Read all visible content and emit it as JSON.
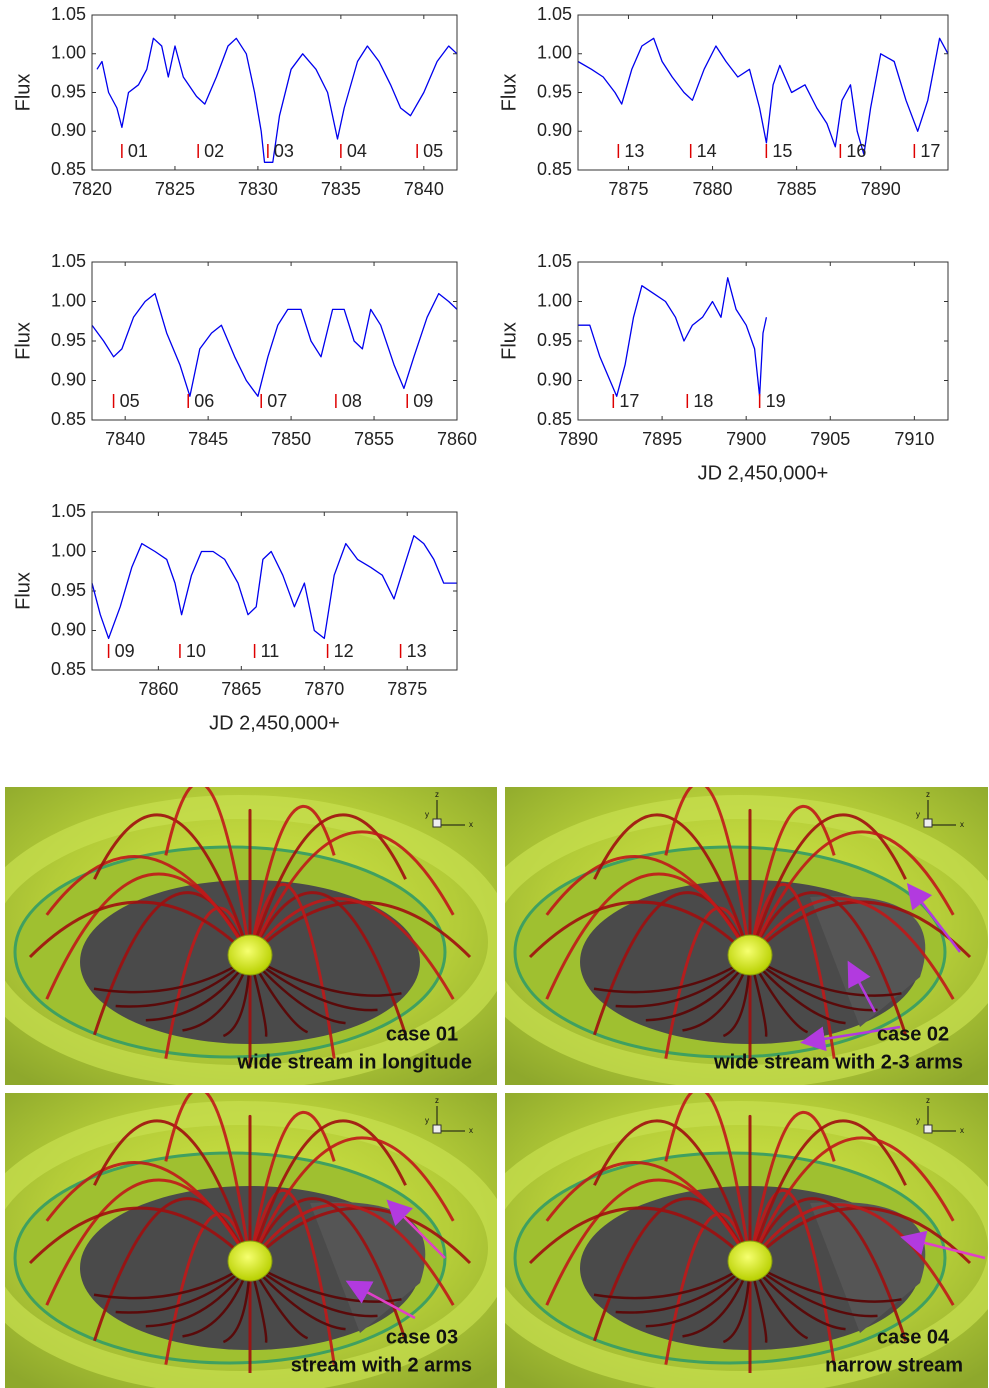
{
  "chart_data": [
    {
      "type": "line",
      "ylabel": "Flux",
      "color": "#0000ee",
      "marker_color": "#dd0000",
      "xlim": [
        7820,
        7842
      ],
      "xticks": [
        7820,
        7825,
        7830,
        7835,
        7840
      ],
      "ylim": [
        0.85,
        1.05
      ],
      "yticks": [
        {
          "value": 0.85,
          "label": "0.85"
        },
        {
          "value": 0.9,
          "label": "0.90"
        },
        {
          "value": 0.95,
          "label": "0.95"
        },
        {
          "value": 1.0,
          "label": "1.00"
        },
        {
          "value": 1.05,
          "label": "1.05"
        }
      ],
      "x": [
        7820.3,
        7820.6,
        7821,
        7821.5,
        7821.8,
        7822.2,
        7822.8,
        7823.3,
        7823.7,
        7824.2,
        7824.6,
        7825,
        7825.5,
        7826.3,
        7826.8,
        7827.5,
        7828.2,
        7828.7,
        7829.3,
        7829.8,
        7830.2,
        7830.4,
        7830.9,
        7831.3,
        7832,
        7832.7,
        7833.5,
        7834.2,
        7834.8,
        7835.2,
        7836,
        7836.6,
        7837.3,
        7838,
        7838.6,
        7839.2,
        7840,
        7840.8,
        7841.5,
        7842
      ],
      "values": [
        0.98,
        0.99,
        0.95,
        0.93,
        0.905,
        0.95,
        0.96,
        0.98,
        1.02,
        1.01,
        0.97,
        1.01,
        0.97,
        0.945,
        0.935,
        0.97,
        1.01,
        1.02,
        1.0,
        0.95,
        0.9,
        0.86,
        0.86,
        0.92,
        0.98,
        1.0,
        0.98,
        0.95,
        0.89,
        0.93,
        0.99,
        1.01,
        0.99,
        0.96,
        0.93,
        0.92,
        0.95,
        0.99,
        1.01,
        1.0
      ],
      "markers": [
        {
          "x": 7821.8,
          "label": "01"
        },
        {
          "x": 7826.4,
          "label": "02"
        },
        {
          "x": 7830.6,
          "label": "03"
        },
        {
          "x": 7835,
          "label": "04"
        },
        {
          "x": 7839.6,
          "label": "05"
        }
      ]
    },
    {
      "type": "line",
      "ylabel": "Flux",
      "color": "#0000ee",
      "marker_color": "#dd0000",
      "xlim": [
        7872,
        7894
      ],
      "xticks": [
        7875,
        7880,
        7885,
        7890
      ],
      "ylim": [
        0.85,
        1.05
      ],
      "yticks": [
        {
          "value": 0.85,
          "label": "0.85"
        },
        {
          "value": 0.9,
          "label": "0.90"
        },
        {
          "value": 0.95,
          "label": "0.95"
        },
        {
          "value": 1.0,
          "label": "1.00"
        },
        {
          "value": 1.05,
          "label": "1.05"
        }
      ],
      "x": [
        7872,
        7872.8,
        7873.5,
        7874.2,
        7874.6,
        7875.2,
        7875.8,
        7876.5,
        7877,
        7877.6,
        7878.3,
        7878.8,
        7879.5,
        7880.2,
        7880.8,
        7881.5,
        7882.2,
        7882.8,
        7883.2,
        7883.6,
        7884,
        7884.7,
        7885.5,
        7886.2,
        7886.8,
        7887.3,
        7887.7,
        7888.2,
        7888.6,
        7889,
        7889.4,
        7890,
        7890.8,
        7891.5,
        7892.2,
        7892.8,
        7893.5,
        7894
      ],
      "values": [
        0.99,
        0.98,
        0.97,
        0.95,
        0.935,
        0.98,
        1.01,
        1.02,
        0.99,
        0.97,
        0.95,
        0.94,
        0.98,
        1.01,
        0.99,
        0.97,
        0.98,
        0.93,
        0.885,
        0.96,
        0.985,
        0.95,
        0.96,
        0.93,
        0.91,
        0.88,
        0.94,
        0.96,
        0.9,
        0.87,
        0.93,
        1.0,
        0.99,
        0.94,
        0.9,
        0.94,
        1.02,
        1.0
      ],
      "markers": [
        {
          "x": 7874.4,
          "label": "13"
        },
        {
          "x": 7878.7,
          "label": "14"
        },
        {
          "x": 7883.2,
          "label": "15"
        },
        {
          "x": 7887.6,
          "label": "16"
        },
        {
          "x": 7892,
          "label": "17"
        }
      ]
    },
    {
      "type": "line",
      "ylabel": "Flux",
      "color": "#0000ee",
      "marker_color": "#dd0000",
      "xlim": [
        7838,
        7860
      ],
      "xticks": [
        7840,
        7845,
        7850,
        7855,
        7860
      ],
      "ylim": [
        0.85,
        1.05
      ],
      "yticks": [
        {
          "value": 0.85,
          "label": "0.85"
        },
        {
          "value": 0.9,
          "label": "0.90"
        },
        {
          "value": 0.95,
          "label": "0.95"
        },
        {
          "value": 1.0,
          "label": "1.00"
        },
        {
          "value": 1.05,
          "label": "1.05"
        }
      ],
      "x": [
        7838,
        7838.7,
        7839.3,
        7839.8,
        7840.5,
        7841.2,
        7841.8,
        7842.5,
        7843.3,
        7843.9,
        7844.5,
        7845.2,
        7845.8,
        7846.6,
        7847.3,
        7848,
        7848.6,
        7849.2,
        7849.8,
        7850.6,
        7851.2,
        7851.8,
        7852.5,
        7853.2,
        7853.8,
        7854.3,
        7854.8,
        7855.4,
        7856.2,
        7856.8,
        7857.4,
        7858.2,
        7858.9,
        7859.5,
        7860
      ],
      "values": [
        0.97,
        0.95,
        0.93,
        0.94,
        0.98,
        1.0,
        1.01,
        0.96,
        0.92,
        0.88,
        0.94,
        0.96,
        0.97,
        0.93,
        0.9,
        0.88,
        0.93,
        0.97,
        0.99,
        0.99,
        0.95,
        0.93,
        0.99,
        0.99,
        0.95,
        0.94,
        0.99,
        0.97,
        0.92,
        0.89,
        0.93,
        0.98,
        1.01,
        1.0,
        0.99
      ],
      "markers": [
        {
          "x": 7839.3,
          "label": "05"
        },
        {
          "x": 7843.8,
          "label": "06"
        },
        {
          "x": 7848.2,
          "label": "07"
        },
        {
          "x": 7852.7,
          "label": "08"
        },
        {
          "x": 7857,
          "label": "09"
        }
      ]
    },
    {
      "type": "line",
      "ylabel": "Flux",
      "xlabel": "JD 2,450,000+",
      "color": "#0000ee",
      "marker_color": "#dd0000",
      "xlim": [
        7890,
        7912
      ],
      "xticks": [
        7890,
        7895,
        7900,
        7905,
        7910
      ],
      "ylim": [
        0.85,
        1.05
      ],
      "yticks": [
        {
          "value": 0.85,
          "label": "0.85"
        },
        {
          "value": 0.9,
          "label": "0.90"
        },
        {
          "value": 0.95,
          "label": "0.95"
        },
        {
          "value": 1.0,
          "label": "1.00"
        },
        {
          "value": 1.05,
          "label": "1.05"
        }
      ],
      "x": [
        7890,
        7890.7,
        7891.3,
        7891.9,
        7892.3,
        7892.8,
        7893.3,
        7893.8,
        7894.5,
        7895.2,
        7895.8,
        7896.3,
        7896.8,
        7897.4,
        7898,
        7898.5,
        7898.9,
        7899.4,
        7900,
        7900.5,
        7900.8,
        7901,
        7901.2
      ],
      "values": [
        0.97,
        0.97,
        0.93,
        0.9,
        0.88,
        0.92,
        0.98,
        1.02,
        1.01,
        1.0,
        0.98,
        0.95,
        0.97,
        0.98,
        1.0,
        0.98,
        1.03,
        0.99,
        0.97,
        0.94,
        0.88,
        0.96,
        0.98
      ],
      "markers": [
        {
          "x": 7892.1,
          "label": "17"
        },
        {
          "x": 7896.5,
          "label": "18"
        },
        {
          "x": 7900.8,
          "label": "19"
        }
      ]
    },
    {
      "type": "line",
      "ylabel": "Flux",
      "xlabel": "JD 2,450,000+",
      "color": "#0000ee",
      "marker_color": "#dd0000",
      "xlim": [
        7856,
        7878
      ],
      "xticks": [
        7860,
        7865,
        7870,
        7875
      ],
      "ylim": [
        0.85,
        1.05
      ],
      "yticks": [
        {
          "value": 0.85,
          "label": "0.85"
        },
        {
          "value": 0.9,
          "label": "0.90"
        },
        {
          "value": 0.95,
          "label": "0.95"
        },
        {
          "value": 1.0,
          "label": "1.00"
        },
        {
          "value": 1.05,
          "label": "1.05"
        }
      ],
      "x": [
        7856,
        7856.5,
        7857,
        7857.7,
        7858.4,
        7859,
        7859.8,
        7860.5,
        7861,
        7861.4,
        7862,
        7862.6,
        7863.3,
        7864,
        7864.8,
        7865.4,
        7865.9,
        7866.3,
        7866.8,
        7867.5,
        7868.2,
        7868.8,
        7869.4,
        7870,
        7870.6,
        7871.3,
        7872,
        7872.8,
        7873.5,
        7874.2,
        7874.8,
        7875.4,
        7876,
        7876.6,
        7877.2,
        7878
      ],
      "values": [
        0.96,
        0.92,
        0.89,
        0.93,
        0.98,
        1.01,
        1.0,
        0.99,
        0.96,
        0.92,
        0.97,
        1.0,
        1.0,
        0.99,
        0.96,
        0.92,
        0.93,
        0.99,
        1.0,
        0.97,
        0.93,
        0.96,
        0.9,
        0.89,
        0.97,
        1.01,
        0.99,
        0.98,
        0.97,
        0.94,
        0.98,
        1.02,
        1.01,
        0.99,
        0.96,
        0.96
      ],
      "markers": [
        {
          "x": 7857,
          "label": "09"
        },
        {
          "x": 7861.3,
          "label": "10"
        },
        {
          "x": 7865.8,
          "label": "11"
        },
        {
          "x": 7870.2,
          "label": "12"
        },
        {
          "x": 7874.6,
          "label": "13"
        }
      ]
    }
  ],
  "simulation_panels": [
    {
      "case": "case 01",
      "description": "wide stream in longitude"
    },
    {
      "case": "case 02",
      "description": "wide stream with 2-3 arms"
    },
    {
      "case": "case 03",
      "description": "stream with 2 arms"
    },
    {
      "case": "case 04",
      "description": "narrow stream"
    }
  ],
  "triad_axes": [
    "z",
    "y",
    "x"
  ]
}
